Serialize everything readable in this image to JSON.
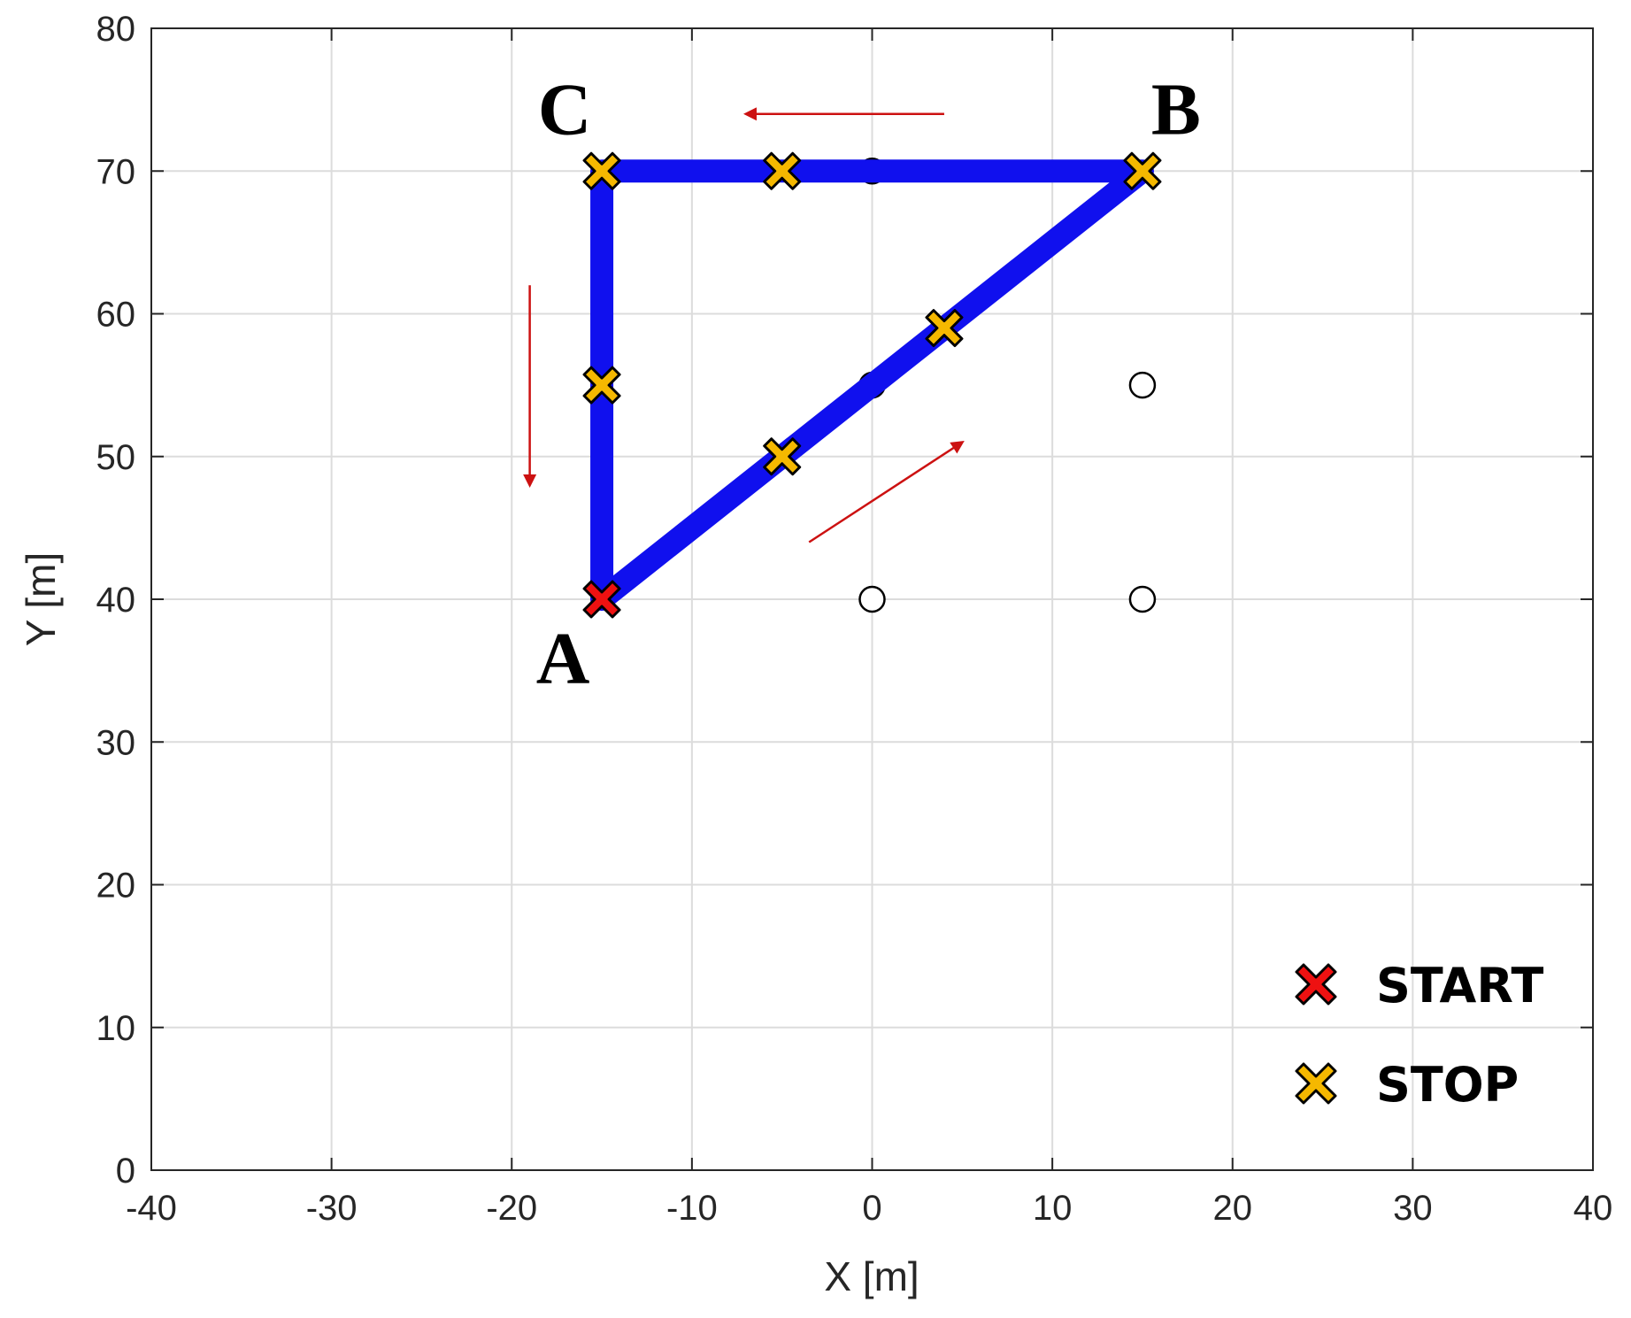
{
  "chart_data": {
    "type": "scatter",
    "title": "",
    "xlabel": "X [m]",
    "ylabel": "Y [m]",
    "xlim": [
      -40,
      40
    ],
    "ylim": [
      0,
      80
    ],
    "xticks": [
      -40,
      -30,
      -20,
      -10,
      0,
      10,
      20,
      30,
      40
    ],
    "yticks": [
      0,
      10,
      20,
      30,
      40,
      50,
      60,
      70,
      80
    ],
    "grid": true,
    "legend_position": "bottom-right",
    "colors": {
      "path": "#1010ee",
      "start_marker": "#ee1111",
      "stop_marker": "#f5b800",
      "arrow": "#cc1111",
      "grid": "#dcdcdc"
    },
    "path": {
      "x": [
        -15,
        15,
        -15,
        -15
      ],
      "y": [
        40,
        70,
        70,
        40
      ]
    },
    "point_labels": [
      {
        "text": "A",
        "x": -15,
        "y": 40
      },
      {
        "text": "B",
        "x": 15,
        "y": 70
      },
      {
        "text": "C",
        "x": -15,
        "y": 70
      }
    ],
    "start_points": [
      {
        "x": -15,
        "y": 40
      }
    ],
    "stop_points": [
      {
        "x": -5,
        "y": 50
      },
      {
        "x": 4,
        "y": 59
      },
      {
        "x": 15,
        "y": 70
      },
      {
        "x": -5,
        "y": 70
      },
      {
        "x": -15,
        "y": 70
      },
      {
        "x": -15,
        "y": 55
      }
    ],
    "reference_points": [
      {
        "x": 0,
        "y": 40
      },
      {
        "x": 15,
        "y": 40
      },
      {
        "x": 0,
        "y": 55
      },
      {
        "x": 15,
        "y": 55
      },
      {
        "x": 0,
        "y": 70
      }
    ],
    "direction_arrows": [
      {
        "from": [
          -3.5,
          44
        ],
        "to": [
          5,
          51
        ]
      },
      {
        "from": [
          4,
          74
        ],
        "to": [
          -7,
          74
        ]
      },
      {
        "from": [
          -19,
          62
        ],
        "to": [
          -19,
          48
        ]
      }
    ],
    "legend": [
      {
        "label": "START",
        "marker": "start"
      },
      {
        "label": "STOP",
        "marker": "stop"
      }
    ]
  }
}
